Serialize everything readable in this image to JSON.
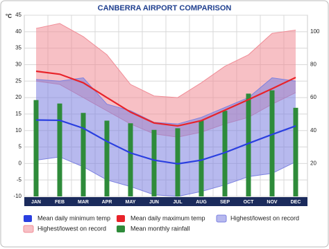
{
  "chart_data": {
    "type": "climograph",
    "title": "CANBERRA AIRPORT COMPARISON",
    "y_label": "°C",
    "categories": [
      "JAN",
      "FEB",
      "MAR",
      "APR",
      "MAY",
      "JUN",
      "JUL",
      "AUG",
      "SEP",
      "OCT",
      "NOV",
      "DEC"
    ],
    "ylim": [
      -10,
      45
    ],
    "yticks": [
      -10,
      -5,
      0,
      5,
      10,
      15,
      20,
      25,
      30,
      35,
      40,
      45
    ],
    "y2lim": [
      0,
      110
    ],
    "y2ticks": [
      20,
      40,
      60,
      80,
      100
    ],
    "grid": true,
    "series": [
      {
        "name": "Highest/lowest on record",
        "kind": "band",
        "color": "#f08c96",
        "high": [
          41,
          42.5,
          38.5,
          33,
          24,
          20.5,
          20,
          24.5,
          29.5,
          33,
          39.5,
          40.5
        ],
        "low": [
          25,
          24,
          20,
          16,
          12,
          9,
          8,
          9.5,
          12,
          14,
          18,
          21.5
        ]
      },
      {
        "name": "Highest/lowest on record",
        "kind": "band",
        "color": "#7b80e0",
        "high": [
          25.5,
          25,
          26,
          18,
          16,
          12.5,
          12,
          14,
          17,
          20,
          26,
          25
        ],
        "low": [
          1,
          2,
          -1,
          -5,
          -7,
          -9.5,
          -10,
          -8.5,
          -6.5,
          -4,
          -3,
          0.5
        ]
      },
      {
        "name": "Mean monthly rainfall",
        "kind": "bar",
        "axis": "y2",
        "color": "#2e8b3a",
        "values": [
          58.5,
          56.4,
          50.7,
          46,
          44.4,
          40.4,
          41.4,
          46.2,
          52,
          62.4,
          64.4,
          53.8
        ]
      },
      {
        "name": "Mean daily maximum temp",
        "kind": "line",
        "color": "#e8232a",
        "values": [
          28,
          27.1,
          24.5,
          20,
          15.6,
          12.3,
          11.4,
          13,
          16.2,
          19.4,
          22.7,
          26.1
        ]
      },
      {
        "name": "Mean daily minimum temp",
        "kind": "line",
        "color": "#2a3fe0",
        "values": [
          13.2,
          13.1,
          10.7,
          6.7,
          3.2,
          1,
          -0.1,
          1,
          3.3,
          6.1,
          8.8,
          11.4
        ]
      }
    ]
  }
}
